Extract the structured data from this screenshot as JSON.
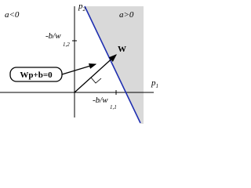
{
  "regions": {
    "negative": "a<0",
    "positive": "a>0"
  },
  "axes": {
    "vertical": {
      "letter": "p",
      "subscript": "2"
    },
    "horizontal": {
      "letter": "p",
      "subscript": "1"
    }
  },
  "intercepts": {
    "vertical": {
      "text": "-b/w",
      "subscript": "1,2"
    },
    "horizontal": {
      "text": "-b/w",
      "subscript": "1,1"
    }
  },
  "weight_vector": "W",
  "boundary_label": "Wp+b=0"
}
